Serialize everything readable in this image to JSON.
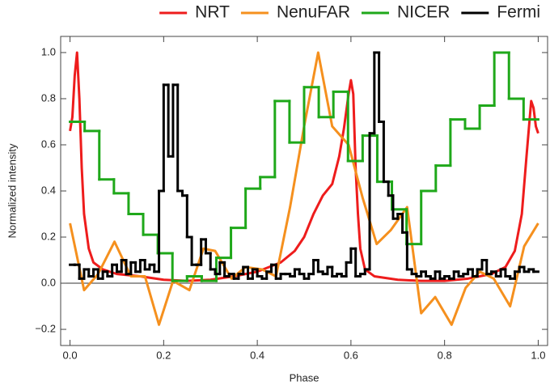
{
  "chart_data": {
    "type": "line",
    "x_label": "Phase",
    "y_label": "Normalized intensity",
    "xlim": [
      -0.02,
      1.02
    ],
    "ylim": [
      -0.27,
      1.07
    ],
    "xticks": [
      {
        "value": 0,
        "label": "0.0"
      },
      {
        "value": 0.2,
        "label": "0.2"
      },
      {
        "value": 0.4,
        "label": "0.4"
      },
      {
        "value": 0.6,
        "label": "0.6"
      },
      {
        "value": 0.8,
        "label": "0.8"
      },
      {
        "value": 1,
        "label": "1.0"
      }
    ],
    "yticks": [
      {
        "value": -0.2,
        "label": "−0.2"
      },
      {
        "value": 0,
        "label": "0.0"
      },
      {
        "value": 0.2,
        "label": "0.2"
      },
      {
        "value": 0.4,
        "label": "0.4"
      },
      {
        "value": 0.6,
        "label": "0.6"
      },
      {
        "value": 0.8,
        "label": "0.8"
      },
      {
        "value": 1,
        "label": "1.0"
      }
    ],
    "hline": 0,
    "legend": "top",
    "series": [
      {
        "name": "NRT",
        "color": "#ee1c1c",
        "style": "line",
        "x": [
          0,
          0.005,
          0.01,
          0.015,
          0.02,
          0.025,
          0.03,
          0.04,
          0.05,
          0.07,
          0.1,
          0.15,
          0.2,
          0.25,
          0.3,
          0.35,
          0.4,
          0.45,
          0.48,
          0.5,
          0.52,
          0.54,
          0.56,
          0.575,
          0.585,
          0.595,
          0.6,
          0.605,
          0.61,
          0.615,
          0.62,
          0.63,
          0.65,
          0.7,
          0.75,
          0.8,
          0.85,
          0.9,
          0.93,
          0.95,
          0.965,
          0.975,
          0.985,
          0.99,
          0.995,
          1
        ],
        "values": [
          0.66,
          0.72,
          0.9,
          1.0,
          0.8,
          0.5,
          0.3,
          0.15,
          0.09,
          0.06,
          0.04,
          0.03,
          0.015,
          0.01,
          0.015,
          0.03,
          0.05,
          0.09,
          0.14,
          0.2,
          0.3,
          0.38,
          0.43,
          0.55,
          0.67,
          0.82,
          0.88,
          0.82,
          0.5,
          0.3,
          0.15,
          0.06,
          0.03,
          0.015,
          0.01,
          0.01,
          0.02,
          0.04,
          0.07,
          0.14,
          0.3,
          0.55,
          0.79,
          0.76,
          0.68,
          0.65
        ]
      },
      {
        "name": "NenuFAR",
        "color": "#f5901e",
        "style": "line",
        "x": [
          0,
          0.03,
          0.06,
          0.095,
          0.13,
          0.16,
          0.19,
          0.22,
          0.255,
          0.285,
          0.31,
          0.345,
          0.375,
          0.41,
          0.44,
          0.47,
          0.5,
          0.53,
          0.56,
          0.595,
          0.625,
          0.655,
          0.685,
          0.72,
          0.75,
          0.78,
          0.815,
          0.845,
          0.875,
          0.905,
          0.94,
          0.97,
          1
        ],
        "values": [
          0.26,
          -0.03,
          0.04,
          0.18,
          0.03,
          0.03,
          -0.18,
          0.01,
          -0.03,
          0.15,
          0.14,
          0.02,
          0.07,
          0.06,
          0.03,
          0.33,
          0.68,
          1.0,
          0.68,
          0.6,
          0.37,
          0.17,
          0.23,
          0.33,
          -0.13,
          -0.06,
          -0.18,
          -0.02,
          0.05,
          0.02,
          -0.1,
          0.16,
          0.26
        ]
      },
      {
        "name": "NICER",
        "color": "#1fa81a",
        "style": "step",
        "bins": [
          0,
          0.03125,
          0.0625,
          0.09375,
          0.125,
          0.15625,
          0.1875,
          0.21875,
          0.25,
          0.28125,
          0.3125,
          0.34375,
          0.375,
          0.40625,
          0.4375,
          0.46875,
          0.5,
          0.53125,
          0.5625,
          0.59375,
          0.625,
          0.65625,
          0.6875,
          0.71875,
          0.75,
          0.78125,
          0.8125,
          0.84375,
          0.875,
          0.90625,
          0.9375,
          0.96875,
          1
        ],
        "values": [
          0.7,
          0.66,
          0.45,
          0.39,
          0.3,
          0.21,
          0.13,
          0.01,
          0.03,
          0.01,
          0.11,
          0.24,
          0.41,
          0.46,
          0.79,
          0.61,
          0.85,
          0.72,
          0.83,
          0.53,
          0.64,
          0.44,
          0.32,
          0.17,
          0.4,
          0.51,
          0.71,
          0.67,
          0.77,
          1.0,
          0.8,
          0.71
        ]
      },
      {
        "name": "Fermi",
        "color": "#000000",
        "style": "step",
        "bins": [
          0,
          0.01,
          0.02,
          0.03,
          0.04,
          0.05,
          0.06,
          0.07,
          0.08,
          0.09,
          0.1,
          0.11,
          0.12,
          0.13,
          0.14,
          0.15,
          0.16,
          0.17,
          0.18,
          0.19,
          0.2,
          0.21,
          0.22,
          0.23,
          0.24,
          0.25,
          0.26,
          0.27,
          0.28,
          0.29,
          0.3,
          0.31,
          0.32,
          0.33,
          0.34,
          0.35,
          0.36,
          0.37,
          0.38,
          0.39,
          0.4,
          0.41,
          0.42,
          0.43,
          0.44,
          0.45,
          0.46,
          0.47,
          0.48,
          0.49,
          0.5,
          0.51,
          0.52,
          0.53,
          0.54,
          0.55,
          0.56,
          0.57,
          0.58,
          0.59,
          0.6,
          0.61,
          0.62,
          0.63,
          0.64,
          0.65,
          0.66,
          0.67,
          0.68,
          0.69,
          0.7,
          0.71,
          0.72,
          0.73,
          0.74,
          0.75,
          0.76,
          0.77,
          0.78,
          0.79,
          0.8,
          0.81,
          0.82,
          0.83,
          0.84,
          0.85,
          0.86,
          0.87,
          0.88,
          0.89,
          0.9,
          0.91,
          0.92,
          0.93,
          0.94,
          0.95,
          0.96,
          0.97,
          0.98,
          0.99,
          1
        ],
        "values": [
          0.08,
          0.08,
          0.02,
          0.06,
          0.03,
          0.06,
          0.02,
          0.05,
          0.03,
          0.08,
          0.05,
          0.1,
          0.04,
          0.09,
          0.05,
          0.1,
          0.06,
          0.08,
          0.05,
          0.4,
          0.86,
          0.55,
          0.86,
          0.4,
          0.38,
          0.2,
          0.08,
          0.08,
          0.19,
          0.13,
          0.06,
          0.04,
          0.09,
          0.03,
          0.04,
          0.02,
          0.04,
          0.07,
          0.02,
          0.06,
          0.03,
          0.02,
          0.05,
          0.08,
          0.02,
          0.04,
          0.04,
          0.03,
          0.06,
          0.04,
          0.02,
          0.04,
          0.1,
          0.05,
          0.04,
          0.07,
          0.03,
          0.04,
          0.03,
          0.09,
          0.15,
          0.03,
          0.04,
          0.06,
          0.65,
          1.0,
          0.7,
          0.44,
          0.38,
          0.28,
          0.3,
          0.22,
          0.06,
          0.04,
          0.03,
          0.05,
          0.03,
          0.02,
          0.05,
          0.02,
          0.03,
          0.02,
          0.05,
          0.03,
          0.04,
          0.06,
          0.03,
          0.06,
          0.1,
          0.04,
          0.05,
          0.03,
          0.06,
          0.03,
          0.02,
          0.05,
          0.07,
          0.05,
          0.06,
          0.05
        ]
      }
    ]
  }
}
